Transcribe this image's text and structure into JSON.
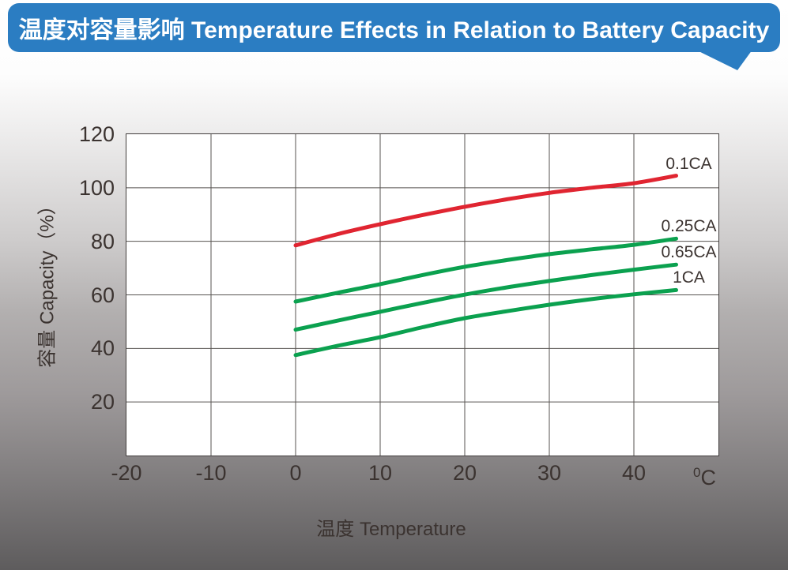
{
  "header": {
    "title": "温度对容量影响 Temperature Effects in Relation to Battery Capacity",
    "bg_color": "#2b7dc2",
    "text_color": "#ffffff"
  },
  "background": {
    "top_color": "#ffffff",
    "bottom_color": "#5e5c5d"
  },
  "chart_data": {
    "type": "line",
    "title": "温度对容量影响 Temperature Effects in Relation to Battery Capacity",
    "xlabel": "温度  Temperature",
    "ylabel": "容量  Capacity（%）",
    "x_unit": {
      "sup": "0",
      "base": "C"
    },
    "xlim": [
      -20,
      50
    ],
    "ylim": [
      0,
      120
    ],
    "x_ticks": [
      -20,
      -10,
      0,
      10,
      20,
      30,
      40
    ],
    "y_ticks": [
      120,
      100,
      80,
      60,
      40,
      20
    ],
    "grid": true,
    "plot_bg": "#ffffff",
    "grid_color": "#575350",
    "axis_text_color": "#3b3330",
    "legend_position": "labels-at-line-ends",
    "series": [
      {
        "name": "0.1CA",
        "color": "#e02531",
        "x": [
          0,
          5,
          10,
          15,
          20,
          25,
          30,
          35,
          40,
          45
        ],
        "y": [
          78.5,
          82.7,
          86.4,
          89.8,
          92.9,
          95.7,
          98.1,
          100.0,
          101.7,
          104.5
        ]
      },
      {
        "name": "0.25CA",
        "color": "#0ba14f",
        "x": [
          0,
          5,
          10,
          15,
          20,
          25,
          30,
          35,
          40,
          45
        ],
        "y": [
          57.5,
          60.8,
          64.0,
          67.4,
          70.5,
          73.0,
          75.2,
          77.0,
          78.7,
          81.0
        ]
      },
      {
        "name": "0.65CA",
        "color": "#0ba14f",
        "x": [
          0,
          5,
          10,
          15,
          20,
          25,
          30,
          35,
          40,
          45
        ],
        "y": [
          47.0,
          50.4,
          53.7,
          57.0,
          60.1,
          62.8,
          65.2,
          67.4,
          69.4,
          71.3
        ]
      },
      {
        "name": "1CA",
        "color": "#0ba14f",
        "x": [
          0,
          5,
          10,
          15,
          20,
          25,
          30,
          35,
          40,
          45
        ],
        "y": [
          37.5,
          41.0,
          44.2,
          47.9,
          51.3,
          53.9,
          56.3,
          58.4,
          60.2,
          61.8
        ]
      }
    ]
  }
}
